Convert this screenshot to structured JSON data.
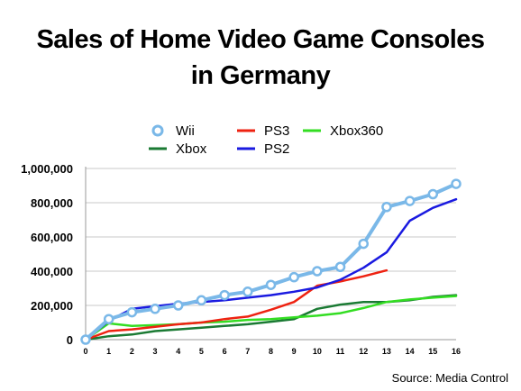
{
  "title_line1": "Sales of Home Video Game Consoles",
  "title_line2": "in Germany",
  "source": "Source: Media Control",
  "chart_data": {
    "type": "line",
    "title": "Sales of Home Video Game Consoles in Germany",
    "xlabel": "",
    "ylabel": "",
    "x": [
      0,
      1,
      2,
      3,
      4,
      5,
      6,
      7,
      8,
      9,
      10,
      11,
      12,
      13,
      14,
      15,
      16
    ],
    "xlim": [
      0,
      16
    ],
    "ylim": [
      0,
      1000000
    ],
    "yticks": [
      0,
      200000,
      400000,
      600000,
      800000,
      1000000
    ],
    "ytick_labels": [
      "0",
      "200,000",
      "400,000",
      "600,000",
      "800,000",
      "1,000,000"
    ],
    "grid": "horizontal",
    "legend_position": "top",
    "series": [
      {
        "name": "Wii",
        "color": "#7ab8e8",
        "marker": "circle",
        "values": [
          0,
          120000,
          160000,
          180000,
          200000,
          230000,
          260000,
          280000,
          320000,
          365000,
          400000,
          425000,
          560000,
          775000,
          810000,
          850000,
          910000
        ]
      },
      {
        "name": "PS3",
        "color": "#ee2211",
        "values": [
          0,
          50000,
          60000,
          75000,
          90000,
          100000,
          120000,
          135000,
          175000,
          220000,
          315000,
          340000,
          370000,
          405000,
          null,
          null,
          null
        ]
      },
      {
        "name": "Xbox360",
        "color": "#33dd22",
        "values": [
          0,
          95000,
          80000,
          85000,
          90000,
          100000,
          105000,
          115000,
          120000,
          130000,
          140000,
          155000,
          185000,
          220000,
          235000,
          245000,
          255000
        ]
      },
      {
        "name": "Xbox",
        "color": "#1a7a33",
        "values": [
          0,
          20000,
          30000,
          50000,
          60000,
          70000,
          80000,
          90000,
          105000,
          120000,
          180000,
          205000,
          220000,
          220000,
          230000,
          250000,
          260000
        ]
      },
      {
        "name": "PS2",
        "color": "#1a1ae0",
        "values": [
          0,
          110000,
          180000,
          195000,
          210000,
          220000,
          230000,
          245000,
          260000,
          280000,
          305000,
          350000,
          420000,
          510000,
          695000,
          770000,
          820000
        ]
      }
    ]
  }
}
